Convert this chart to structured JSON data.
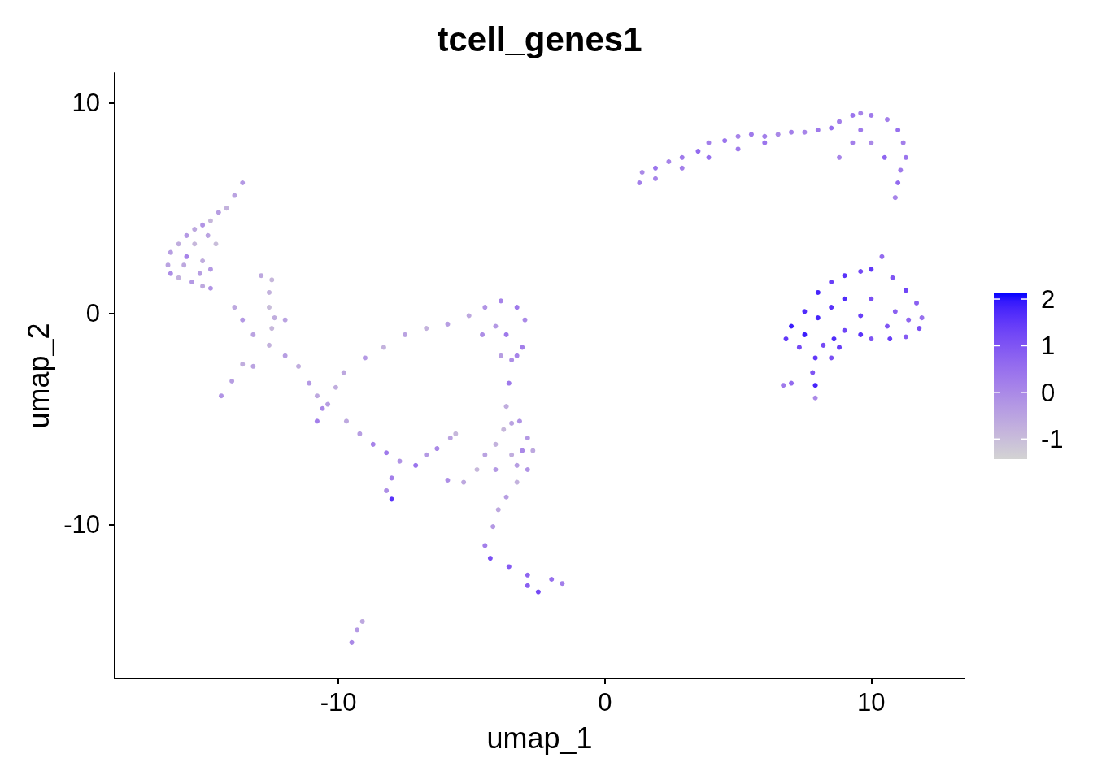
{
  "chart_data": {
    "type": "scatter",
    "title": "tcell_genes1",
    "xlabel": "umap_1",
    "ylabel": "umap_2",
    "x": [
      -13.6,
      -13.9,
      -14.2,
      -14.5,
      -14.8,
      -15.1,
      -15.4,
      -15.7,
      -16.0,
      -16.3,
      -16.4,
      -16.3,
      -16.0,
      -15.5,
      -15.1,
      -14.8,
      -15.4,
      -15.7,
      -15.1,
      -15.2,
      -15.8,
      -14.8,
      -14.6,
      -14.9,
      -13.9,
      -13.6,
      -13.2,
      -12.6,
      -12.0,
      -11.5,
      -11.1,
      -10.8,
      -10.6,
      -10.8,
      -10.4,
      -12.9,
      -12.5,
      -12.6,
      -12.6,
      -12.4,
      -12.0,
      -12.5,
      -14.4,
      -14.0,
      -13.6,
      -13.2,
      -10.1,
      -9.8,
      -9.0,
      -8.3,
      -7.5,
      -6.7,
      -5.9,
      -5.1,
      -4.5,
      -3.9,
      -3.3,
      -3.0,
      -3.1,
      -3.5,
      -3.6,
      -3.7,
      -3.5,
      -2.9,
      -2.7,
      -2.9,
      -3.3,
      -3.7,
      -4.0,
      -4.2,
      -4.5,
      -4.3,
      -3.6,
      -2.9,
      -2.0,
      -1.6,
      -2.5,
      -2.9,
      -4.1,
      -4.6,
      -3.7,
      -3.3,
      -3.9,
      -5.9,
      -5.3,
      -4.8,
      -4.5,
      -4.1,
      -4.1,
      -3.5,
      -3.1,
      -3.3,
      -3.8,
      -3.2,
      -9.2,
      -8.7,
      -8.2,
      -7.7,
      -7.1,
      -6.7,
      -6.3,
      -5.8,
      -5.6,
      -8.0,
      -8.2,
      -8.0,
      -9.7,
      -9.5,
      -9.3,
      -9.1,
      1.3,
      1.4,
      1.9,
      2.4,
      2.9,
      3.5,
      3.9,
      4.5,
      5.0,
      5.5,
      6.0,
      6.5,
      7.0,
      7.5,
      8.0,
      8.5,
      8.8,
      9.3,
      9.6,
      10.0,
      10.6,
      11.0,
      11.2,
      11.3,
      11.1,
      11.0,
      10.9,
      9.6,
      10.0,
      10.5,
      9.3,
      8.8,
      2.9,
      3.9,
      5.0,
      1.9,
      6.0,
      6.8,
      7.0,
      7.5,
      8.0,
      8.5,
      9.0,
      9.6,
      10.0,
      10.4,
      10.8,
      11.3,
      11.7,
      11.9,
      11.8,
      11.3,
      10.7,
      10.0,
      9.6,
      9.0,
      8.6,
      8.2,
      7.9,
      7.8,
      7.9,
      7.9,
      7.0,
      6.7,
      8.5,
      8.8,
      7.5,
      7.3,
      9.0,
      10.0,
      10.9,
      9.6,
      8.5,
      10.6,
      8.0,
      11.4
    ],
    "values": [
      6.2,
      5.6,
      5.0,
      4.8,
      4.4,
      4.2,
      4.0,
      3.7,
      3.3,
      2.9,
      2.3,
      1.9,
      1.7,
      1.5,
      1.3,
      1.2,
      3.3,
      2.7,
      2.5,
      1.9,
      2.3,
      2.1,
      3.3,
      3.7,
      0.3,
      -0.3,
      -1.0,
      -1.5,
      -2.0,
      -2.5,
      -3.3,
      -3.9,
      -4.5,
      -5.1,
      -4.3,
      1.8,
      1.6,
      1.0,
      0.3,
      -0.2,
      -0.3,
      -0.7,
      -3.9,
      -3.2,
      -2.4,
      -2.5,
      -3.5,
      -2.8,
      -2.1,
      -1.6,
      -1.0,
      -0.7,
      -0.5,
      -0.1,
      0.3,
      0.6,
      0.3,
      -0.3,
      -1.6,
      -2.2,
      -3.3,
      -4.4,
      -5.2,
      -5.9,
      -6.5,
      -7.4,
      -8.0,
      -8.7,
      -9.3,
      -10.1,
      -11.0,
      -11.6,
      -12.0,
      -12.4,
      -12.6,
      -12.8,
      -13.2,
      -12.9,
      -0.6,
      -1.0,
      -1.0,
      -2.0,
      -2.0,
      -7.9,
      -8.0,
      -7.4,
      -6.7,
      -6.2,
      -7.4,
      -6.7,
      -6.5,
      -7.2,
      -5.5,
      -5.1,
      -5.7,
      -6.2,
      -6.6,
      -7.0,
      -7.2,
      -6.7,
      -6.4,
      -5.9,
      -5.7,
      -7.8,
      -8.4,
      -8.8,
      -5.1,
      -15.6,
      -15.0,
      -14.6,
      6.2,
      6.7,
      6.9,
      7.2,
      7.4,
      7.7,
      8.1,
      8.2,
      8.4,
      8.5,
      8.4,
      8.5,
      8.6,
      8.6,
      8.7,
      8.8,
      9.1,
      9.4,
      9.5,
      9.4,
      9.2,
      8.7,
      8.1,
      7.4,
      6.8,
      6.2,
      5.5,
      8.7,
      8.1,
      7.4,
      8.1,
      7.4,
      6.9,
      7.4,
      7.8,
      6.4,
      8.1,
      -1.2,
      -0.6,
      0.1,
      1.0,
      1.5,
      1.8,
      2.0,
      2.1,
      2.7,
      1.7,
      1.1,
      0.5,
      -0.2,
      -0.7,
      -1.1,
      -1.2,
      -1.2,
      -1.0,
      -0.8,
      -1.2,
      -1.5,
      -2.1,
      -2.8,
      -3.4,
      -4.0,
      -3.3,
      -3.4,
      -2.1,
      -1.6,
      -1.0,
      -1.6,
      0.7,
      0.7,
      0.1,
      -0.1,
      0.3,
      -0.6,
      -0.2,
      -0.3
    ],
    "cvalues": [
      -0.3,
      -0.5,
      -0.8,
      -0.4,
      -0.9,
      -0.2,
      -0.6,
      -0.3,
      -0.7,
      -0.4,
      -0.5,
      -0.1,
      -0.8,
      -0.3,
      -0.6,
      -0.2,
      -0.9,
      0.1,
      -0.7,
      -0.4,
      -0.6,
      -0.3,
      -1.0,
      -0.5,
      -0.6,
      -0.3,
      -0.5,
      -0.8,
      -0.4,
      -0.7,
      -0.3,
      -0.6,
      0.0,
      0.2,
      -0.4,
      -0.6,
      -0.9,
      -0.8,
      -1.0,
      -0.7,
      -0.5,
      -0.9,
      -0.2,
      -0.4,
      -0.7,
      -0.5,
      -0.7,
      -0.6,
      -0.3,
      -0.8,
      -0.5,
      -0.8,
      -0.4,
      -0.6,
      -0.2,
      0.1,
      0.3,
      0.0,
      0.2,
      -0.1,
      0.3,
      -0.7,
      -0.5,
      -0.3,
      -0.6,
      -0.2,
      -0.8,
      -0.4,
      -0.6,
      -0.3,
      0.2,
      1.1,
      0.9,
      0.7,
      0.5,
      0.2,
      1.2,
      0.8,
      -0.3,
      -0.1,
      0.3,
      0.1,
      -0.4,
      -0.1,
      -0.6,
      -0.9,
      -0.5,
      -0.8,
      -0.3,
      -0.7,
      0.0,
      -0.4,
      -0.9,
      -0.2,
      -0.4,
      0.1,
      0.3,
      -0.2,
      0.4,
      -0.3,
      0.0,
      -0.5,
      -0.9,
      0.2,
      -0.1,
      1.6,
      -0.6,
      0.0,
      -0.3,
      -0.6,
      0.2,
      0.0,
      0.4,
      0.1,
      0.3,
      0.6,
      0.2,
      0.4,
      0.1,
      0.3,
      0.2,
      0.0,
      0.2,
      0.1,
      0.3,
      0.5,
      0.2,
      0.4,
      0.1,
      0.3,
      0.2,
      0.5,
      0.2,
      0.4,
      0.3,
      0.6,
      0.1,
      0.3,
      0.0,
      0.7,
      0.2,
      0.1,
      0.2,
      0.5,
      0.3,
      0.1,
      0.4,
      1.5,
      1.9,
      1.7,
      1.8,
      1.4,
      1.6,
      1.2,
      1.5,
      0.6,
      1.0,
      1.3,
      0.8,
      0.5,
      1.1,
      0.9,
      1.4,
      1.0,
      1.6,
      1.3,
      1.7,
      1.2,
      1.5,
      1.0,
      1.8,
      0.0,
      0.6,
      0.3,
      1.1,
      1.4,
      1.9,
      1.2,
      1.7,
      1.1,
      0.8,
      1.4,
      1.6,
      1.0,
      1.8,
      0.7
    ],
    "xlim": [
      -18.4,
      13.5
    ],
    "xticks": [
      -10,
      0,
      10
    ],
    "ylim": [
      -17.3,
      11.4
    ],
    "yticks": [
      -10,
      0,
      10
    ],
    "clim": [
      -1.43,
      2.14
    ],
    "cticks": [
      -1,
      0,
      1,
      2
    ],
    "marker": "circle",
    "grid": false
  }
}
